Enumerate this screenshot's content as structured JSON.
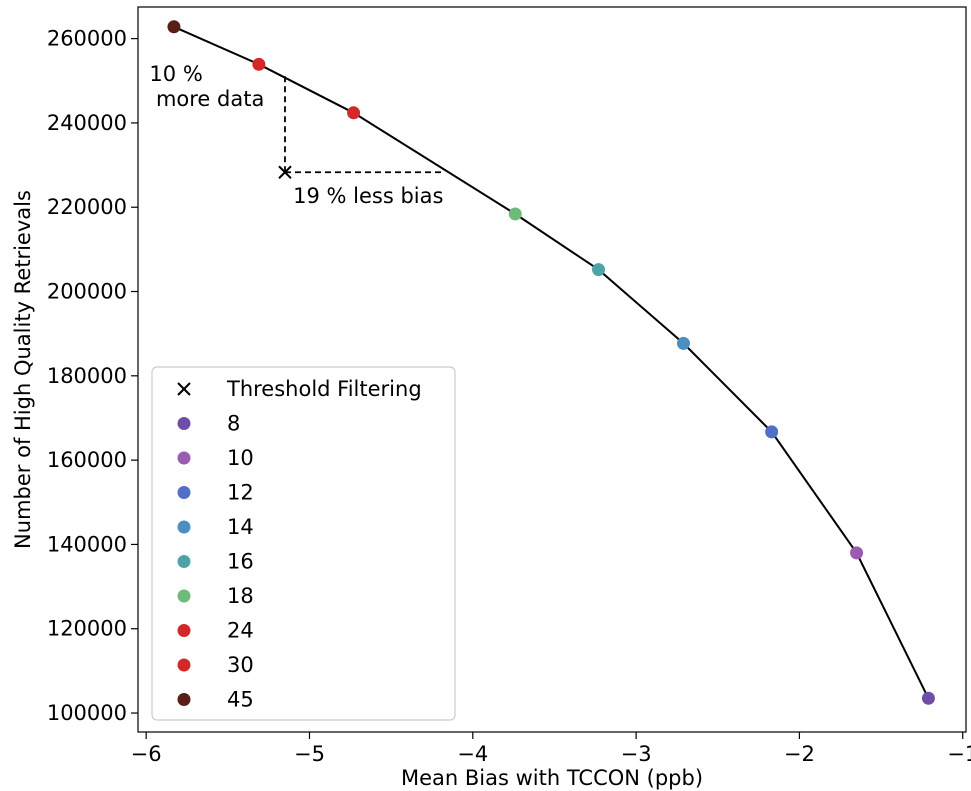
{
  "chart_data": {
    "type": "scatter",
    "xlabel": "Mean Bias with TCCON (ppb)",
    "ylabel": "Number of High Quality Retrievals",
    "xlim": [
      -6.05,
      -0.98
    ],
    "ylim": [
      95500,
      267500
    ],
    "xticks": [
      -6,
      -5,
      -4,
      -3,
      -2,
      -1
    ],
    "xtick_labels": [
      "−6",
      "−5",
      "−4",
      "−3",
      "−2",
      "−1"
    ],
    "yticks": [
      100000,
      120000,
      140000,
      160000,
      180000,
      200000,
      220000,
      240000,
      260000
    ],
    "ytick_labels": [
      "100000",
      "120000",
      "140000",
      "160000",
      "180000",
      "200000",
      "220000",
      "240000",
      "260000"
    ],
    "grid": false,
    "legend_position": "lower-left",
    "curve": {
      "color": "#000000",
      "x": [
        -5.83,
        -5.31,
        -4.73,
        -3.74,
        -3.23,
        -2.71,
        -2.17,
        -1.65,
        -1.21
      ],
      "y": [
        262800,
        253900,
        242400,
        218400,
        205200,
        187700,
        166700,
        138000,
        103500
      ]
    },
    "points": [
      {
        "label": "45",
        "x": -5.83,
        "y": 262800,
        "color": "#5a1e18"
      },
      {
        "label": "30",
        "x": -5.31,
        "y": 253900,
        "color": "#d62728"
      },
      {
        "label": "24",
        "x": -4.73,
        "y": 242400,
        "color": "#d62728"
      },
      {
        "label": "18",
        "x": -3.74,
        "y": 218400,
        "color": "#6dba7a"
      },
      {
        "label": "16",
        "x": -3.23,
        "y": 205200,
        "color": "#4fa3a6"
      },
      {
        "label": "14",
        "x": -2.71,
        "y": 187700,
        "color": "#4a8fbf"
      },
      {
        "label": "12",
        "x": -2.17,
        "y": 166700,
        "color": "#4f6fc9"
      },
      {
        "label": "10",
        "x": -1.65,
        "y": 138000,
        "color": "#9a5bb0"
      },
      {
        "label": "8",
        "x": -1.21,
        "y": 103500,
        "color": "#6e4fa8"
      }
    ],
    "threshold_point": {
      "label": "Threshold Filtering",
      "x": -5.15,
      "y": 228300,
      "marker": "x"
    },
    "annotations": [
      {
        "text": "10 %",
        "x": -5.98,
        "y": 250000
      },
      {
        "text": "more data",
        "x": -5.94,
        "y": 244000
      },
      {
        "text": "19 % less bias",
        "x": -5.1,
        "y": 221000
      }
    ],
    "dashed_lines": [
      {
        "from": [
          -5.15,
          228300
        ],
        "to": [
          -5.15,
          251500
        ]
      },
      {
        "from": [
          -5.15,
          228300
        ],
        "to": [
          -4.17,
          228300
        ]
      }
    ],
    "legend": [
      {
        "label": "Threshold Filtering",
        "marker": "x",
        "color": "#000000"
      },
      {
        "label": "8",
        "marker": "circle",
        "color": "#6e4fa8"
      },
      {
        "label": "10",
        "marker": "circle",
        "color": "#9a5bb0"
      },
      {
        "label": "12",
        "marker": "circle",
        "color": "#4f6fc9"
      },
      {
        "label": "14",
        "marker": "circle",
        "color": "#4a8fbf"
      },
      {
        "label": "16",
        "marker": "circle",
        "color": "#4fa3a6"
      },
      {
        "label": "18",
        "marker": "circle",
        "color": "#6dba7a"
      },
      {
        "label": "24",
        "marker": "circle",
        "color": "#d62728"
      },
      {
        "label": "30",
        "marker": "circle",
        "color": "#d62728"
      },
      {
        "label": "45",
        "marker": "circle",
        "color": "#5a1e18"
      }
    ]
  }
}
